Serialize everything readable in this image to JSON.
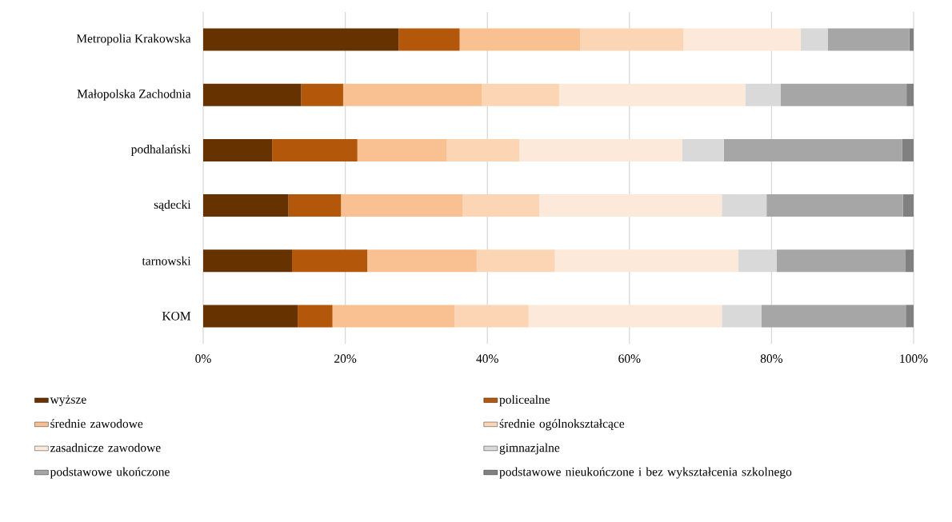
{
  "chart_data": {
    "type": "bar",
    "orientation": "horizontal",
    "stacked": true,
    "categories": [
      "Metropolia Krakowska",
      "Małopolska Zachodnia",
      "podhalański",
      "sądecki",
      "tarnowski",
      "KOM"
    ],
    "series": [
      {
        "name": "wyższe",
        "color": "#663300",
        "values": [
          27.5,
          13.8,
          9.7,
          12.0,
          12.5,
          13.3
        ]
      },
      {
        "name": "policealne",
        "color": "#b3570a",
        "values": [
          8.6,
          5.9,
          12.0,
          7.4,
          10.6,
          4.9
        ]
      },
      {
        "name": "średnie zawodowe",
        "color": "#f9c192",
        "values": [
          17.0,
          19.5,
          12.6,
          17.1,
          15.4,
          17.2
        ]
      },
      {
        "name": "średnie ogólnokształcące",
        "color": "#fcd5b5",
        "values": [
          14.5,
          10.9,
          10.2,
          10.8,
          11.0,
          10.4
        ]
      },
      {
        "name": "zasadnicze zawodowe",
        "color": "#fde9d9",
        "values": [
          16.5,
          26.2,
          22.9,
          25.7,
          25.8,
          27.2
        ]
      },
      {
        "name": "gimnazjalne",
        "color": "#d9d9d9",
        "values": [
          3.8,
          5.0,
          5.9,
          6.3,
          5.4,
          5.6
        ]
      },
      {
        "name": "podstawowe ukończone",
        "color": "#a6a6a6",
        "values": [
          11.5,
          17.7,
          25.1,
          19.2,
          18.1,
          20.3
        ]
      },
      {
        "name": "podstawowe nieukończone i bez wykształcenia szkolnego",
        "color": "#808080",
        "values": [
          0.6,
          1.0,
          1.6,
          1.5,
          1.2,
          1.1
        ]
      }
    ],
    "xlim": [
      0,
      100
    ],
    "xticks": [
      {
        "value": 0,
        "label": "0%"
      },
      {
        "value": 20,
        "label": "20%"
      },
      {
        "value": 40,
        "label": "40%"
      },
      {
        "value": 60,
        "label": "60%"
      },
      {
        "value": 80,
        "label": "80%"
      },
      {
        "value": 100,
        "label": "100%"
      }
    ],
    "grid": "x",
    "legend": "bottom"
  }
}
